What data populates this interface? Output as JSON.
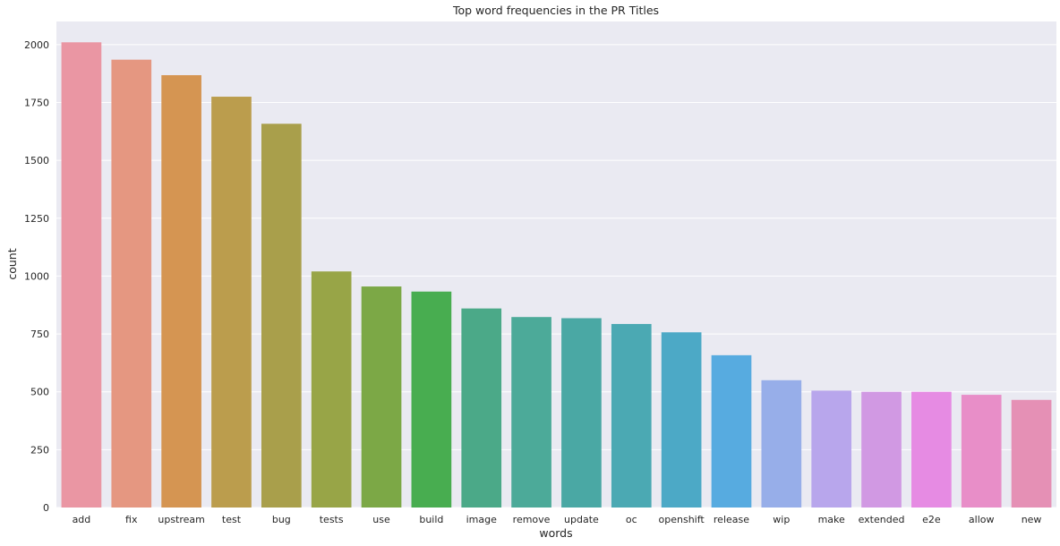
{
  "chart_data": {
    "type": "bar",
    "title": "Top word frequencies in the PR Titles",
    "xlabel": "words",
    "ylabel": "count",
    "ylim": [
      0,
      2100
    ],
    "yticks": [
      0,
      250,
      500,
      750,
      1000,
      1250,
      1500,
      1750,
      2000
    ],
    "grid": true,
    "categories": [
      "add",
      "fix",
      "upstream",
      "test",
      "bug",
      "tests",
      "use",
      "build",
      "image",
      "remove",
      "update",
      "oc",
      "openshift",
      "release",
      "wip",
      "make",
      "extended",
      "e2e",
      "allow",
      "new"
    ],
    "values": [
      2010,
      1935,
      1868,
      1775,
      1658,
      1020,
      955,
      933,
      860,
      823,
      818,
      793,
      757,
      658,
      550,
      505,
      500,
      500,
      487,
      465
    ],
    "colors": [
      "#ea96a3",
      "#e59781",
      "#d59552",
      "#bb9d4d",
      "#a99f4b",
      "#98a547",
      "#7ca846",
      "#48ad50",
      "#4ba988",
      "#4caa99",
      "#4aa8a4",
      "#4ba9b3",
      "#4ca9c6",
      "#57abe0",
      "#97aee9",
      "#b8a6ec",
      "#d199e3",
      "#e68be3",
      "#e88ec8",
      "#e590b5"
    ]
  }
}
